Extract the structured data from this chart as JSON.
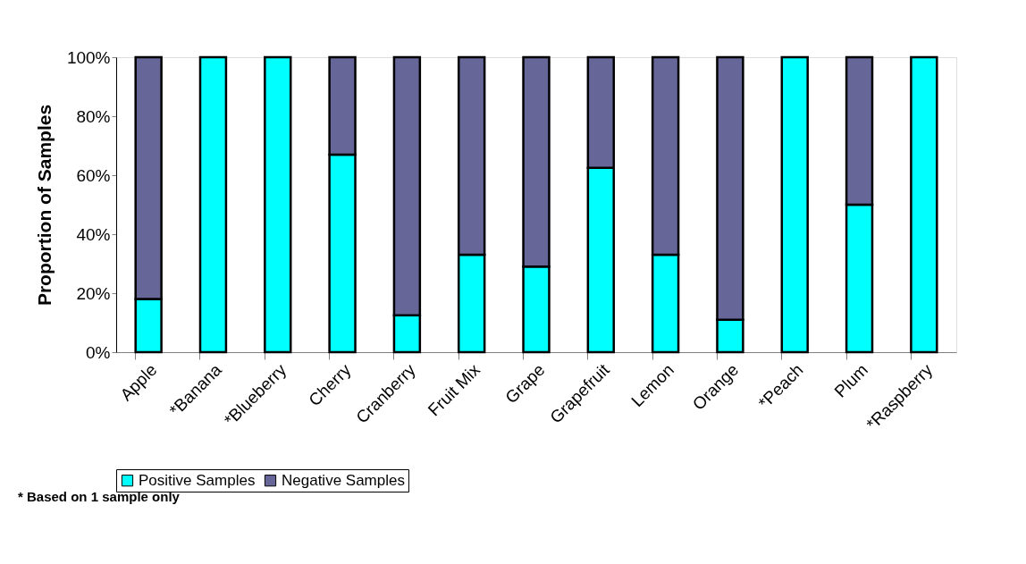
{
  "chart_data": {
    "type": "bar",
    "stacked": true,
    "ylabel": "Proportion of Samples",
    "categories": [
      "Apple",
      "*Banana",
      "*Blueberry",
      "Cherry",
      "Cranberry",
      "Fruit Mix",
      "Grape",
      "Grapefruit",
      "Lemon",
      "Orange",
      "*Peach",
      "Plum",
      "*Raspberry"
    ],
    "series": [
      {
        "name": "Positive Samples",
        "color": "#00ffff",
        "values": [
          18,
          100,
          100,
          67,
          12.5,
          33,
          29,
          62.5,
          33,
          11,
          100,
          50,
          100
        ]
      },
      {
        "name": "Negative Samples",
        "color": "#666699",
        "values": [
          82,
          null,
          null,
          33,
          87.5,
          67,
          71,
          37.5,
          67,
          89,
          null,
          50,
          null
        ]
      }
    ],
    "ylim": [
      0,
      100
    ],
    "yticks": [
      {
        "value": 0,
        "label": "0%"
      },
      {
        "value": 20,
        "label": "20%"
      },
      {
        "value": 40,
        "label": "40%"
      },
      {
        "value": 60,
        "label": "60%"
      },
      {
        "value": 80,
        "label": "80%"
      },
      {
        "value": 100,
        "label": "100%"
      }
    ],
    "grid": false,
    "legend": "bottom",
    "annotations": [
      "* Based on 1 sample only"
    ]
  }
}
